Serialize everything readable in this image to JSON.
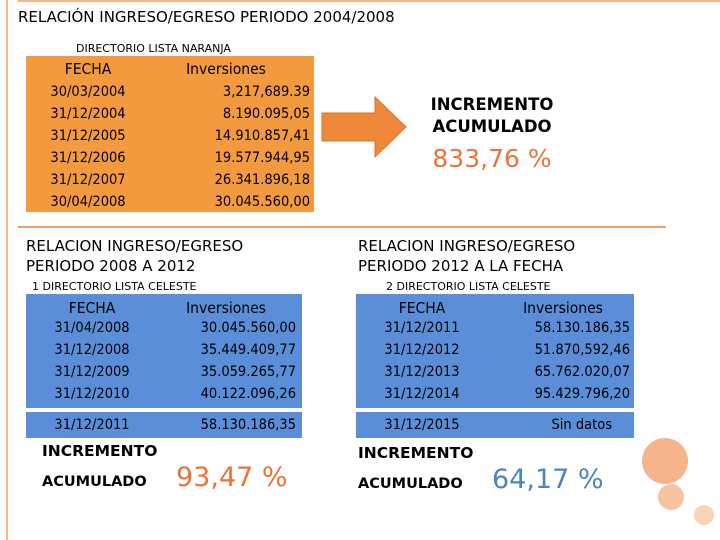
{
  "title": "RELACIÓN INGRESO/EGRESO PERIODO 2004/2008",
  "section1": {
    "subtitle": "DIRECTORIO LISTA NARANJA",
    "headers": {
      "date": "FECHA",
      "value": "Inversiones"
    },
    "rows": [
      {
        "date": "30/03/2004",
        "value": "3,217,689.39"
      },
      {
        "date": "31/12/2004",
        "value": "8.190.095,05"
      },
      {
        "date": "31/12/2005",
        "value": "14.910.857,41"
      },
      {
        "date": "31/12/2006",
        "value": "19.577.944,95"
      },
      {
        "date": "31/12/2007",
        "value": "26.341.896,18"
      },
      {
        "date": "30/04/2008",
        "value": "30.045.560,00"
      }
    ],
    "increment_label_1": "INCREMENTO",
    "increment_label_2": "ACUMULADO",
    "increment_value": "833,76 %"
  },
  "section2": {
    "title_line1": "RELACION INGRESO/EGRESO",
    "title_line2": "PERIODO 2008 A 2012",
    "subtitle": "1 DIRECTORIO LISTA CELESTE",
    "headers": {
      "date": "FECHA",
      "value": "Inversiones"
    },
    "rows": [
      {
        "date": "31/04/2008",
        "value": "30.045.560,00"
      },
      {
        "date": "31/12/2008",
        "value": "35.449.409,77"
      },
      {
        "date": "31/12/2009",
        "value": "35.059.265,77"
      },
      {
        "date": "31/12/2010",
        "value": "40.122.096,26"
      }
    ],
    "last_row": {
      "date": "31/12/2011",
      "value": "58.130.186,35"
    },
    "increment_label_1": "INCREMENTO",
    "increment_label_2": "ACUMULADO",
    "increment_value": "93,47 %"
  },
  "section3": {
    "title_line1": "RELACION INGRESO/EGRESO",
    "title_line2": "PERIODO 2012 A LA FECHA",
    "subtitle": "2 DIRECTORIO LISTA CELESTE",
    "headers": {
      "date": "FECHA",
      "value": "Inversiones"
    },
    "rows": [
      {
        "date": "31/12/2011",
        "value": "58.130.186,35"
      },
      {
        "date": "31/12/2012",
        "value": "51.870,592,46"
      },
      {
        "date": "31/12/2013",
        "value": "65.762.020,07"
      },
      {
        "date": "31/12/2014",
        "value": "95.429.796,20"
      }
    ],
    "last_row": {
      "date": "31/12/2015",
      "value": "Sin datos"
    },
    "increment_label_1": "INCREMENTO",
    "increment_label_2": "ACUMULADO",
    "increment_value": "64,17 %"
  },
  "colors": {
    "orange_table": "#f39a3e",
    "blue_table": "#5b8ed8",
    "orange_text": "#e8743a",
    "blue_text": "#4a84c8",
    "arrow": "#f0883a"
  }
}
